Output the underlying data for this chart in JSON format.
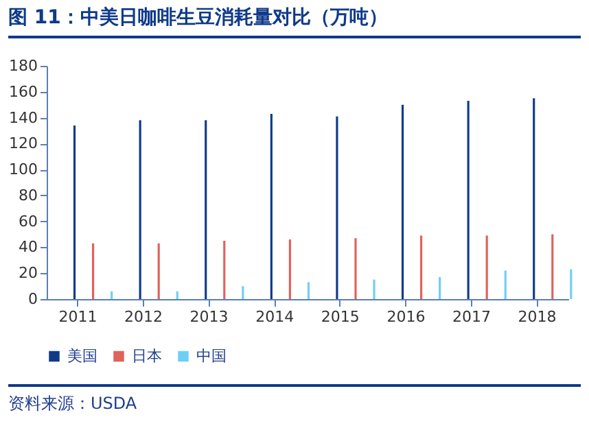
{
  "chart_data": {
    "type": "bar",
    "title": "图 11：中美日咖啡生豆消耗量对比（万吨）",
    "categories": [
      "2011",
      "2012",
      "2013",
      "2014",
      "2015",
      "2016",
      "2017",
      "2018"
    ],
    "series": [
      {
        "name": "美国",
        "color": "#0f3a8a",
        "values": [
          134,
          138,
          138,
          143,
          141,
          150,
          153,
          155
        ]
      },
      {
        "name": "日本",
        "color": "#e0625a",
        "values": [
          43,
          43,
          45,
          46,
          47,
          49,
          49,
          50
        ]
      },
      {
        "name": "中国",
        "color": "#6ecff6",
        "values": [
          6,
          6,
          10,
          13,
          15,
          17,
          22,
          23
        ]
      }
    ],
    "ylim": [
      0,
      180
    ],
    "yticks": [
      0,
      20,
      40,
      60,
      80,
      100,
      120,
      140,
      160,
      180
    ],
    "grid": false,
    "legend": "bottom",
    "annotations": [
      "资料来源：USDA"
    ]
  }
}
